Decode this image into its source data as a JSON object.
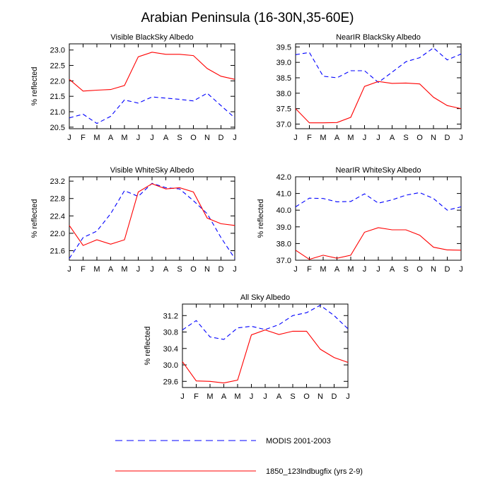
{
  "title": "Arabian Peninsula (16-30N,35-60E)",
  "legend": [
    {
      "label": "MODIS 2001-2003",
      "color": "#0000ff",
      "dashed": true
    },
    {
      "label": "1850_123lndbugfix (yrs 2-9)",
      "color": "#ff0000",
      "dashed": false
    }
  ],
  "chart_data": [
    {
      "type": "line",
      "title": "Visible BlackSky Albedo",
      "ylabel": "% reflected",
      "categories": [
        "J",
        "F",
        "M",
        "A",
        "M",
        "J",
        "J",
        "A",
        "S",
        "O",
        "N",
        "D",
        "J"
      ],
      "ylim": [
        20.45,
        23.2
      ],
      "yticks": [
        20.5,
        21.0,
        21.5,
        22.0,
        22.5,
        23.0
      ],
      "yticklabels": [
        "20.5",
        "21.0",
        "21.5",
        "22.0",
        "22.5",
        "23.0"
      ],
      "series": [
        {
          "name": "MODIS 2001-2003",
          "color": "#0000ff",
          "dashed": true,
          "values": [
            20.8,
            20.92,
            20.62,
            20.85,
            21.38,
            21.28,
            21.48,
            21.44,
            21.4,
            21.35,
            21.6,
            21.2,
            20.8
          ]
        },
        {
          "name": "1850_123lndbugfix (yrs 2-9)",
          "color": "#ff0000",
          "dashed": false,
          "values": [
            22.05,
            21.67,
            21.7,
            21.72,
            21.85,
            22.78,
            22.93,
            22.86,
            22.86,
            22.82,
            22.4,
            22.15,
            22.05
          ]
        }
      ]
    },
    {
      "type": "line",
      "title": "NearIR BlackSky Albedo",
      "ylabel": "",
      "categories": [
        "J",
        "F",
        "M",
        "A",
        "M",
        "J",
        "J",
        "A",
        "S",
        "O",
        "N",
        "D",
        "J"
      ],
      "ylim": [
        36.85,
        39.6
      ],
      "yticks": [
        37.0,
        37.5,
        38.0,
        38.5,
        39.0,
        39.5
      ],
      "yticklabels": [
        "37.0",
        "37.5",
        "38.0",
        "38.5",
        "39.0",
        "39.5"
      ],
      "series": [
        {
          "name": "MODIS 2001-2003",
          "color": "#0000ff",
          "dashed": true,
          "values": [
            39.25,
            39.32,
            38.55,
            38.5,
            38.73,
            38.73,
            38.35,
            38.68,
            39.02,
            39.15,
            39.47,
            39.08,
            39.27
          ]
        },
        {
          "name": "1850_123lndbugfix (yrs 2-9)",
          "color": "#ff0000",
          "dashed": false,
          "values": [
            37.5,
            37.04,
            37.04,
            37.05,
            37.22,
            38.22,
            38.38,
            38.32,
            38.33,
            38.3,
            37.87,
            37.6,
            37.5
          ]
        }
      ]
    },
    {
      "type": "line",
      "title": "Visible WhiteSky Albedo",
      "ylabel": "% reflected",
      "categories": [
        "J",
        "F",
        "M",
        "A",
        "M",
        "J",
        "J",
        "A",
        "S",
        "O",
        "N",
        "D",
        "J"
      ],
      "ylim": [
        21.38,
        23.3
      ],
      "yticks": [
        21.6,
        22.0,
        22.4,
        22.8,
        23.2
      ],
      "yticklabels": [
        "21.6",
        "22.0",
        "22.4",
        "22.8",
        "23.2"
      ],
      "series": [
        {
          "name": "MODIS 2001-2003",
          "color": "#0000ff",
          "dashed": true,
          "values": [
            21.42,
            21.9,
            22.05,
            22.45,
            22.98,
            22.85,
            23.15,
            23.05,
            23.02,
            22.75,
            22.45,
            21.9,
            21.42
          ]
        },
        {
          "name": "1850_123lndbugfix (yrs 2-9)",
          "color": "#ff0000",
          "dashed": false,
          "values": [
            22.18,
            21.72,
            21.85,
            21.75,
            21.85,
            22.95,
            23.14,
            23.02,
            23.05,
            22.95,
            22.35,
            22.22,
            22.18
          ]
        }
      ]
    },
    {
      "type": "line",
      "title": "NearIR WhiteSky Albedo",
      "ylabel": "% reflected",
      "categories": [
        "J",
        "F",
        "M",
        "A",
        "M",
        "J",
        "J",
        "A",
        "S",
        "O",
        "N",
        "D",
        "J"
      ],
      "ylim": [
        37.0,
        42.0
      ],
      "yticks": [
        37.0,
        38.0,
        39.0,
        40.0,
        41.0,
        42.0
      ],
      "yticklabels": [
        "37.0",
        "38.0",
        "39.0",
        "40.0",
        "41.0",
        "42.0"
      ],
      "series": [
        {
          "name": "MODIS 2001-2003",
          "color": "#0000ff",
          "dashed": true,
          "values": [
            40.2,
            40.72,
            40.7,
            40.5,
            40.52,
            40.98,
            40.42,
            40.62,
            40.9,
            41.05,
            40.7,
            40.0,
            40.2
          ]
        },
        {
          "name": "1850_123lndbugfix (yrs 2-9)",
          "color": "#ff0000",
          "dashed": false,
          "values": [
            37.6,
            37.05,
            37.3,
            37.12,
            37.3,
            38.68,
            38.95,
            38.82,
            38.82,
            38.5,
            37.78,
            37.62,
            37.6
          ]
        }
      ]
    },
    {
      "type": "line",
      "title": "All Sky Albedo",
      "ylabel": "% reflected",
      "categories": [
        "J",
        "F",
        "M",
        "A",
        "M",
        "J",
        "J",
        "A",
        "S",
        "O",
        "N",
        "D",
        "J"
      ],
      "ylim": [
        29.45,
        31.48
      ],
      "yticks": [
        29.6,
        30.0,
        30.4,
        30.8,
        31.2
      ],
      "yticklabels": [
        "29.6",
        "30.0",
        "30.4",
        "30.8",
        "31.2"
      ],
      "series": [
        {
          "name": "MODIS 2001-2003",
          "color": "#0000ff",
          "dashed": true,
          "values": [
            30.85,
            31.08,
            30.68,
            30.62,
            30.9,
            30.94,
            30.86,
            30.98,
            31.2,
            31.27,
            31.45,
            31.2,
            30.88
          ]
        },
        {
          "name": "1850_123lndbugfix (yrs 2-9)",
          "color": "#ff0000",
          "dashed": false,
          "values": [
            30.08,
            29.61,
            29.6,
            29.56,
            29.63,
            30.73,
            30.85,
            30.74,
            30.82,
            30.82,
            30.38,
            30.18,
            30.06
          ]
        }
      ]
    }
  ]
}
